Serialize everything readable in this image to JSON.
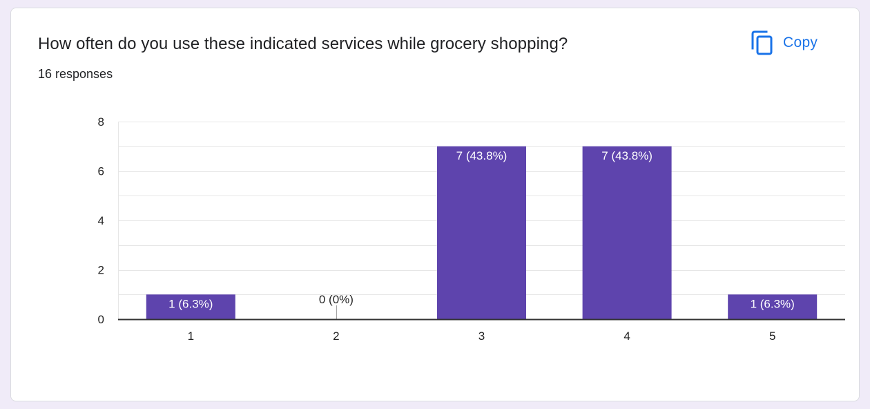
{
  "header": {
    "title": "How often do you use these indicated services while grocery shopping?",
    "responses": "16 responses",
    "copy_label": "Copy",
    "copy_icon": "copy-icon"
  },
  "colors": {
    "bar": "#5e44ad",
    "accent": "#1a73e8",
    "gridline": "#e6e6e6",
    "baseline": "#333333",
    "text": "#202124",
    "axis_text": "#222222"
  },
  "chart_data": {
    "type": "bar",
    "title": "How often do you use these indicated services while grocery shopping?",
    "xlabel": "",
    "ylabel": "",
    "categories": [
      "1",
      "2",
      "3",
      "4",
      "5"
    ],
    "values": [
      1,
      0,
      7,
      7,
      1
    ],
    "data_labels": [
      "1 (6.3%)",
      "0 (0%)",
      "7 (43.8%)",
      "7 (43.8%)",
      "1 (6.3%)"
    ],
    "ylim": [
      0,
      8
    ],
    "yticks": [
      0,
      2,
      4,
      6,
      8
    ],
    "minor_gridlines": true,
    "legend": "none"
  }
}
